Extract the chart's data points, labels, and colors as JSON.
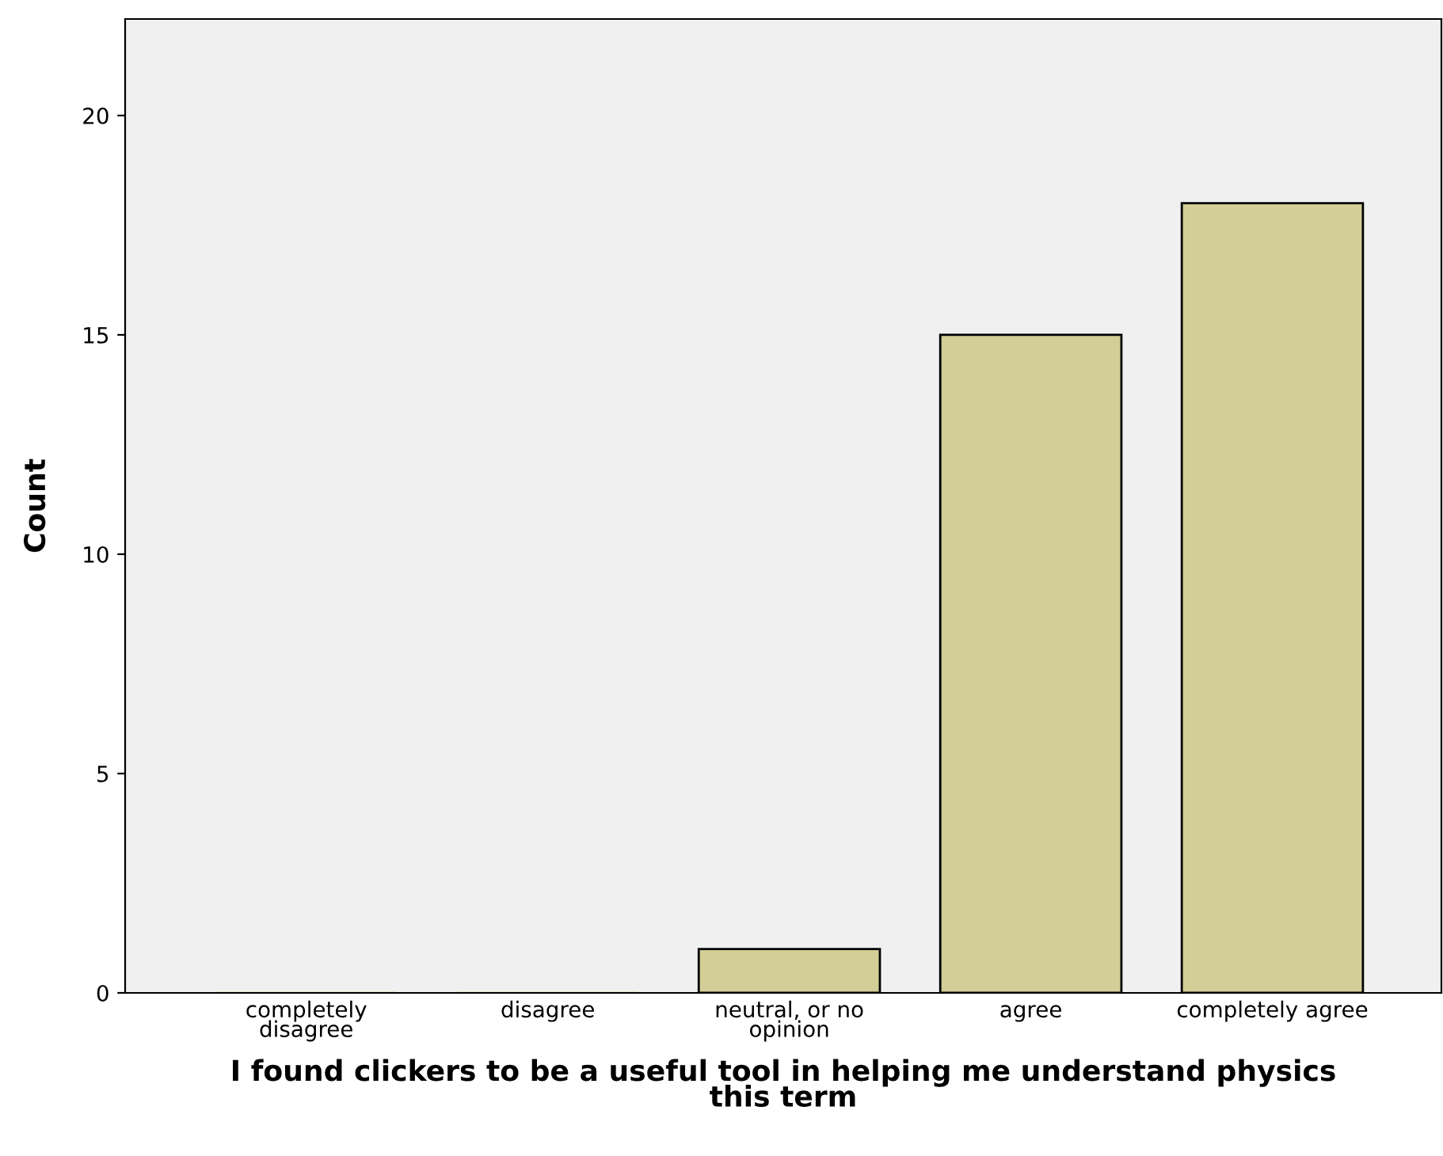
{
  "chart_data": {
    "type": "bar",
    "categories": [
      "completely\ndisagree",
      "disagree",
      "neutral, or no\nopinion",
      "agree",
      "completely agree"
    ],
    "values": [
      0,
      0,
      1,
      15,
      18
    ],
    "color": "#d3ce97",
    "xlabel": "I found clickers to be a useful tool in helping me understand physics\nthis term",
    "ylabel": "Count",
    "ylim": [
      0,
      22.2
    ],
    "yticks": [
      0,
      5,
      10,
      15,
      20
    ],
    "grid": false
  }
}
